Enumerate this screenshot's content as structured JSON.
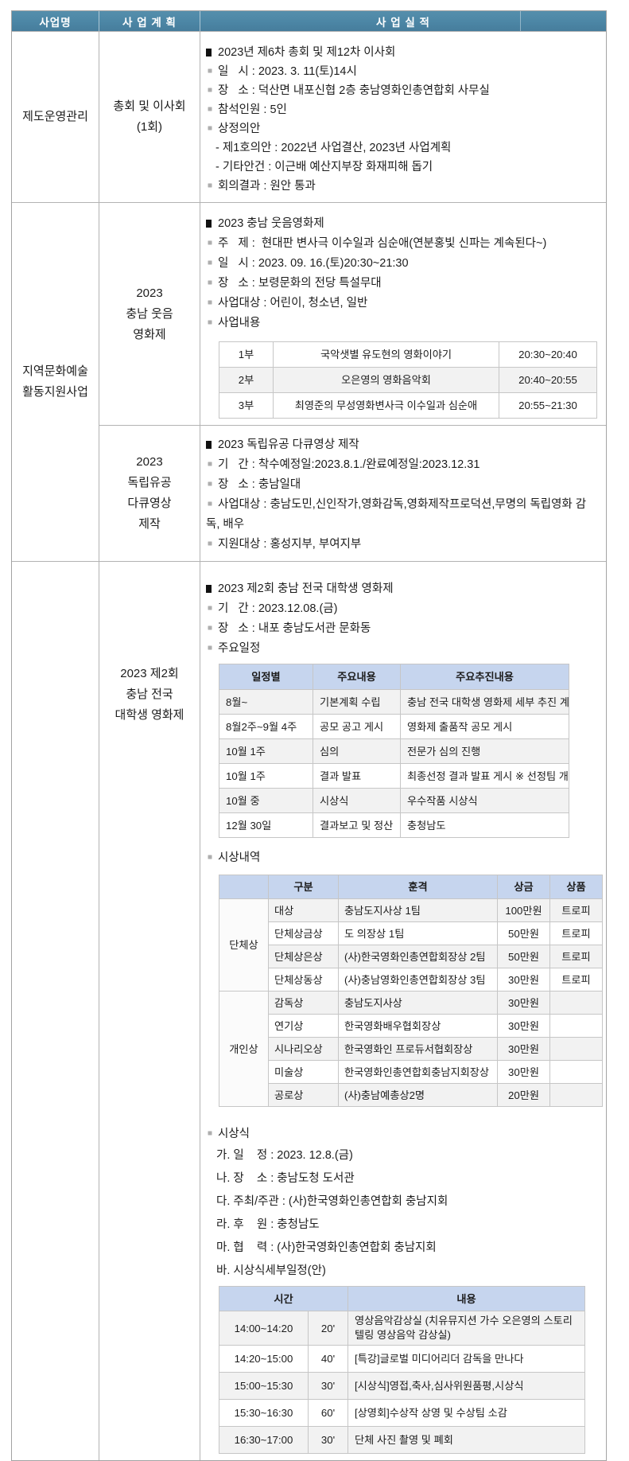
{
  "colors": {
    "main_header_bg": "#4c86a5",
    "sub_header_bg": "#c6d5ee",
    "stripe": "#f2f2f2",
    "border": "#b3b3b3"
  },
  "header": {
    "col_name": "사업명",
    "col_plan": "사 업 계 획",
    "col_result": "사 업 실 적"
  },
  "g1": {
    "name": "제도운영관리",
    "plan": "총회 및 이사회\n(1회)",
    "title": "2023년 제6차 총회 및 제12차 이사회",
    "l1": "일   시 : 2023. 3. 11(토)14시",
    "l2": "장   소 : 덕산면 내포신협 2층 충남영화인총연합회 사무실",
    "l3": "참석인원 : 5인",
    "l4": "상정의안",
    "l5": "- 제1호의안 : 2022년 사업결산, 2023년 사업계획",
    "l6": "- 기타안건 : 이근배 예산지부장 화재피해 돕기",
    "l7": "회의결과 : 원안 통과"
  },
  "g2": {
    "name": "지역문화예술\n활동지원사업",
    "a": {
      "plan": "2023\n충남 웃음\n영화제",
      "title": "2023 충남 웃음영화제",
      "l1": "주   제 :  현대판 변사극 이수일과 심순애(연분홍빛 신파는 계속된다~)",
      "l2": "일   시 : 2023. 09. 16.(토)20:30~21:30",
      "l3": "장   소 : 보령문화의 전당 특설무대",
      "l4": "사업대상 : 어린이, 청소년, 일반",
      "l5": "사업내용",
      "parts": {
        "rows": [
          [
            "1부",
            "국악샛별 유도현의 영화이야기",
            "20:30~20:40"
          ],
          [
            "2부",
            "오은영의 영화음악회",
            "20:40~20:55"
          ],
          [
            "3부",
            "최영준의 무성영화변사극 이수일과 심순애",
            "20:55~21:30"
          ]
        ]
      }
    },
    "b": {
      "plan": "2023\n독립유공\n다큐영상\n제작",
      "title": "2023 독립유공 다큐영상 제작",
      "l1": "기   간 : 착수예정일:2023.8.1./완료예정일:2023.12.31",
      "l2": "장   소 : 충남일대",
      "l3": "사업대상 : 충남도민,신인작가,영화감독,영화제작프로덕션,무명의 독립영화 감독, 배우",
      "l4": "지원대상 : 홍성지부, 부여지부"
    }
  },
  "g3": {
    "name": "",
    "plan": "2023 제2회\n충남 전국\n대학생 영화제",
    "title": "2023 제2회 충남 전국 대학생 영화제",
    "l1": "기   간 : 2023.12.08.(금)",
    "l2": "장   소 : 내포 충남도서관 문화동",
    "l3": "주요일정",
    "schedule": {
      "h1": "일정별",
      "h2": "주요내용",
      "h3": "주요추진내용",
      "rows": [
        [
          "8월~",
          "기본계획 수립",
          "충남 전국 대학생 영화제 세부 추진 계획수립"
        ],
        [
          "8월2주~9월 4주",
          "공모 공고 게시",
          "영화제 출품작 공모 게시"
        ],
        [
          "10월 1주",
          "심의",
          "전문가 심의 진행"
        ],
        [
          "10월 1주",
          "결과 발표",
          "최종선정 결과 발표 게시 ※ 선정팀 개별 안내"
        ],
        [
          "10월 중",
          "시상식",
          "우수작품 시상식"
        ],
        [
          "12월 30일",
          "결과보고 및 정산",
          "충청남도"
        ]
      ]
    },
    "awards_label": "시상내역",
    "awards": {
      "h1": "",
      "h2": "구분",
      "h3": "훈격",
      "h4": "상금",
      "h5": "상품",
      "group1": "단체상",
      "group2": "개인상",
      "rows": [
        [
          "대상",
          "충남도지사상 1팀",
          "100만원",
          "트로피"
        ],
        [
          "단체상금상",
          "도 의장상 1팀",
          "50만원",
          "트로피"
        ],
        [
          "단체상은상",
          "(사)한국영화인총연합회장상 2팀",
          "50만원",
          "트로피"
        ],
        [
          "단체상동상",
          "(사)충남영화인총연합회장상 3팀",
          "30만원",
          "트로피"
        ],
        [
          "감독상",
          "충남도지사상",
          "30만원",
          ""
        ],
        [
          "연기상",
          "한국영화배우협회장상",
          "30만원",
          ""
        ],
        [
          "시나리오상",
          "한국영화인 프로듀서협회장상",
          "30만원",
          ""
        ],
        [
          "미술상",
          "한국영화인총연합회충남지회장상",
          "30만원",
          ""
        ],
        [
          "공로상",
          "(사)충남예총상2명",
          "20만원",
          ""
        ]
      ]
    },
    "ceremony_label": "시상식",
    "c1": "가. 일    정 : 2023. 12.8.(금)",
    "c2": "나. 장    소 : 충남도청 도서관",
    "c3": "다. 주최/주관 : (사)한국영화인총연합회 충남지회",
    "c4": "라. 후    원 : 충청남도",
    "c5": "마. 협    력 : (사)한국영화인총연합회 충남지회",
    "c6": "바. 시상식세부일정(안)",
    "detail": {
      "h1": "시간",
      "h2": "내용",
      "rows": [
        [
          "14:00~14:20",
          "20'",
          "영상음악감상실 (치유뮤지션 가수 오은영의 스토리텔링 영상음악 감상실)"
        ],
        [
          "14:20~15:00",
          "40'",
          "[특강]글로벌 미디어리더 감독을 만나다"
        ],
        [
          "15:00~15:30",
          "30'",
          "[시상식]영접,축사,심사위원품평,시상식"
        ],
        [
          "15:30~16:30",
          "60'",
          "[상영회]수상작 상영 및 수상팀 소감"
        ],
        [
          "16:30~17:00",
          "30'",
          "단체 사진 촬영 및 폐회"
        ]
      ]
    }
  }
}
